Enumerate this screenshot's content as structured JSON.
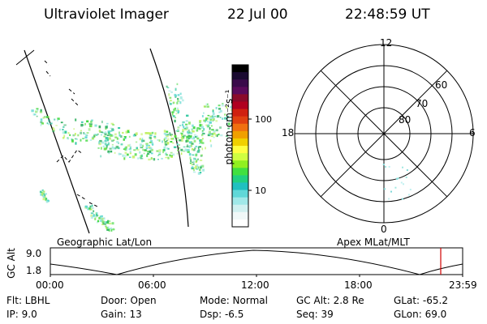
{
  "header": {
    "title": "Ultraviolet Imager",
    "date": "22 Jul 00",
    "time": "22:48:59 UT"
  },
  "colorbar": {
    "label": "photon cm⁻²s⁻¹",
    "ticks": [
      "100",
      "10"
    ],
    "colors": [
      "#000000",
      "#1a0a30",
      "#3a0a4a",
      "#5a0a5a",
      "#8a0a2a",
      "#b00020",
      "#d02010",
      "#e04010",
      "#f07010",
      "#f0a000",
      "#f0d000",
      "#ffff40",
      "#d0ff40",
      "#90f020",
      "#40e040",
      "#20d080",
      "#20c0c0",
      "#60d8d8",
      "#a0e8e8",
      "#d0f0f0",
      "#f0f8f8",
      "#ffffff"
    ]
  },
  "polar": {
    "labels": {
      "top": "12",
      "bottom": "0",
      "left": "18",
      "right": "6"
    },
    "lat_labels": [
      "60",
      "70",
      "80"
    ]
  },
  "panel_labels": {
    "left": "Geographic Lat/Lon",
    "right": "Apex MLat/MLT"
  },
  "timeline": {
    "ylabel": "GC Alt",
    "yticks": [
      "9.0",
      "1.8"
    ],
    "xticks": [
      "00:00",
      "06:00",
      "12:00",
      "18:00",
      "23:59"
    ],
    "cursor_color": "#d00000"
  },
  "info": {
    "filter": "Flt: LBHL",
    "ip": "IP:  9.0",
    "door": "Door: Open",
    "gain": "Gain: 13",
    "mode": "Mode: Normal",
    "dsp": "Dsp:    -6.5",
    "gc_alt": "GC Alt: 2.8 Re",
    "seq": "Seq: 39",
    "glat": "GLat:   -65.2",
    "glon": "GLon:   69.0"
  }
}
